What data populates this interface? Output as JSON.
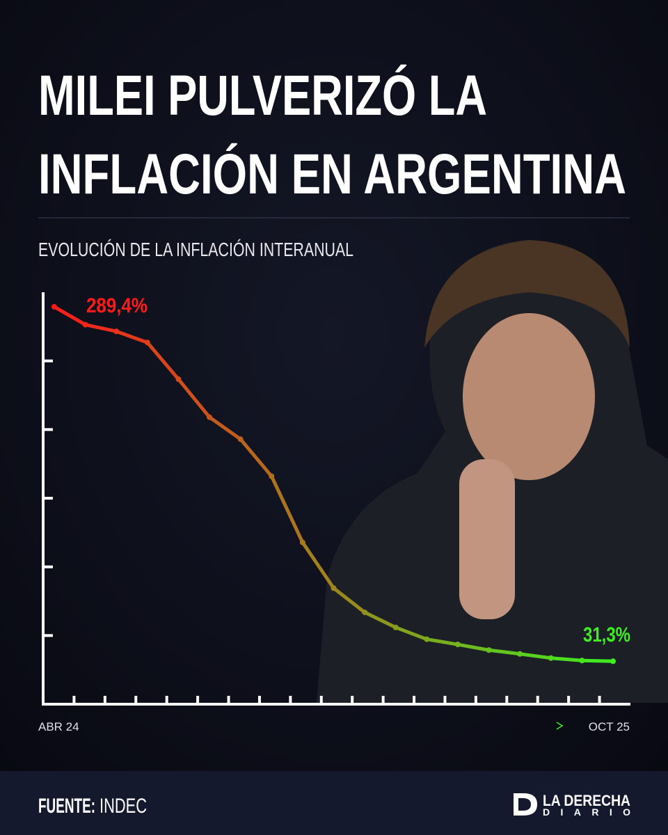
{
  "chart_data": {
    "type": "line",
    "title": [
      "MILEI PULVERIZÓ LA",
      "INFLACIÓN EN ARGENTINA"
    ],
    "subtitle": "EVOLUCIÓN DE LA INFLACIÓN INTERANUAL",
    "categories": [
      "ABR 24",
      null,
      null,
      null,
      null,
      null,
      null,
      null,
      null,
      null,
      null,
      null,
      null,
      null,
      null,
      null,
      null,
      null,
      "OCT 25"
    ],
    "values": [
      289.4,
      276.4,
      271.5,
      263.4,
      236.7,
      209,
      193,
      166,
      117.8,
      84.5,
      66.9,
      55.9,
      47.3,
      43.5,
      39.4,
      36.6,
      33.6,
      31.8,
      31.3
    ],
    "value_labels": [
      "289,4%",
      null,
      null,
      null,
      null,
      null,
      null,
      null,
      null,
      null,
      null,
      null,
      null,
      null,
      null,
      null,
      null,
      null,
      "31,3%"
    ],
    "color_start": "#ff1a1a",
    "color_end": "#3cf020",
    "ylim": [
      0,
      300
    ],
    "yticks": [
      50,
      100,
      150,
      200,
      250
    ]
  },
  "footer": {
    "source_label": "FUENTE:",
    "source": "INDEC",
    "brand": [
      "LA DERECHA",
      "DIARIO"
    ]
  }
}
